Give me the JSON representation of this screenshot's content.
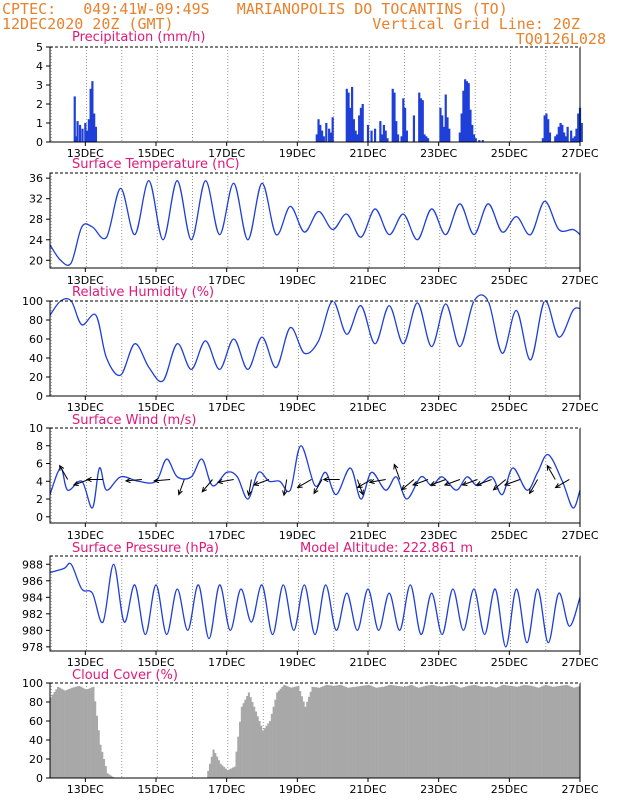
{
  "header": {
    "line1_left": "CPTEC:   049:41W-09:49S   MARIANOPOLIS DO TOCANTINS (TO)",
    "line2_left": "12DEC2020 20Z (GMT)",
    "line2_right": "Vertical Grid Line: 20Z",
    "line3_right": "TQ0126L028"
  },
  "colors": {
    "header": "#e8822c",
    "title": "#e0187a",
    "series": "#1f3fd8",
    "cloud": "#a8a8a8",
    "frame": "#000000"
  },
  "x_tick_labels": [
    "13DEC",
    "15DEC",
    "17DEC",
    "19DEC",
    "21DEC",
    "23DEC",
    "25DEC",
    "27DEC"
  ],
  "chart_data": [
    {
      "type": "bar",
      "title": "Precipitation (mm/h)",
      "x_unit": "days since 12DEC2020 00Z",
      "ylim": [
        0,
        5
      ],
      "yticks": [
        0,
        1,
        2,
        3,
        4,
        5
      ],
      "x": [
        0.7,
        0.74,
        0.78,
        0.85,
        0.92,
        1.0,
        1.05,
        1.1,
        1.15,
        1.2,
        1.25,
        1.3,
        7.55,
        7.6,
        7.65,
        7.7,
        7.75,
        7.82,
        7.9,
        7.95,
        8.0,
        8.4,
        8.45,
        8.5,
        8.55,
        8.6,
        8.65,
        8.7,
        8.75,
        8.8,
        8.85,
        9.0,
        9.1,
        9.2,
        9.35,
        9.4,
        9.45,
        9.5,
        9.55,
        9.7,
        9.75,
        9.8,
        9.85,
        9.95,
        10.0,
        10.05,
        10.1,
        10.3,
        10.45,
        10.5,
        10.55,
        10.6,
        10.65,
        10.7,
        11.05,
        11.1,
        11.15,
        11.2,
        11.25,
        11.3,
        11.6,
        11.65,
        11.7,
        11.75,
        11.8,
        11.85,
        11.9,
        11.95,
        12.0,
        12.05,
        12.15,
        12.25,
        13.95,
        14.0,
        14.05,
        14.1,
        14.15,
        14.3,
        14.35,
        14.4,
        14.45,
        14.5,
        14.55,
        14.6,
        14.65,
        14.75,
        14.8,
        14.85,
        14.9,
        14.95,
        15.0,
        15.05
      ],
      "values": [
        2.4,
        0.3,
        1.1,
        0.9,
        0.7,
        1.0,
        0.6,
        1.2,
        2.8,
        3.2,
        1.5,
        0.8,
        0.4,
        1.2,
        0.9,
        0.6,
        0.3,
        1.0,
        0.7,
        0.5,
        1.3,
        2.8,
        2.6,
        1.8,
        2.9,
        1.2,
        0.6,
        0.4,
        1.4,
        1.8,
        2.0,
        0.9,
        0.6,
        0.7,
        1.1,
        0.4,
        0.9,
        0.6,
        0.2,
        2.8,
        2.6,
        1.1,
        0.4,
        0.3,
        2.3,
        1.8,
        0.6,
        1.4,
        2.6,
        2.3,
        2.2,
        0.4,
        0.3,
        0.2,
        1.8,
        1.4,
        0.8,
        2.5,
        1.3,
        0.7,
        0.5,
        1.5,
        2.7,
        3.3,
        3.2,
        3.1,
        1.7,
        0.9,
        0.4,
        0.2,
        0.1,
        0.1,
        0.2,
        1.4,
        1.5,
        1.2,
        0.5,
        0.3,
        0.4,
        0.8,
        1.0,
        0.9,
        0.5,
        0.3,
        0.8,
        0.6,
        0.2,
        0.3,
        0.7,
        1.5,
        1.8,
        1.0
      ]
    },
    {
      "type": "line",
      "title": "Surface Temperature (nC)",
      "x_unit": "days since 12DEC2020 00Z",
      "ylim": [
        18.5,
        37
      ],
      "yticks": [
        20,
        24,
        28,
        32,
        36
      ],
      "x": [
        0.0,
        0.3,
        0.6,
        0.9,
        1.2,
        1.6,
        2.0,
        2.4,
        2.8,
        3.2,
        3.6,
        4.0,
        4.4,
        4.8,
        5.2,
        5.6,
        6.0,
        6.4,
        6.8,
        7.2,
        7.6,
        8.0,
        8.4,
        8.8,
        9.2,
        9.6,
        10.0,
        10.4,
        10.8,
        11.2,
        11.6,
        12.0,
        12.4,
        12.8,
        13.2,
        13.6,
        14.0,
        14.4,
        14.8,
        15.0
      ],
      "values": [
        23,
        20,
        19.5,
        26.5,
        26.5,
        24.5,
        34,
        25,
        35.5,
        24,
        35.5,
        24,
        35.5,
        25,
        35,
        24,
        35,
        25,
        30.5,
        25.5,
        29.5,
        26,
        29,
        24.5,
        30,
        25,
        29,
        24,
        30,
        25,
        31,
        25,
        31,
        25.5,
        28.5,
        25,
        31.5,
        26,
        26,
        25
      ]
    },
    {
      "type": "line",
      "title": "Relative Humidity (%)",
      "x_unit": "days since 12DEC2020 00Z",
      "ylim": [
        0,
        100
      ],
      "yticks": [
        0,
        20,
        40,
        60,
        80,
        100
      ],
      "x": [
        0.0,
        0.3,
        0.6,
        0.9,
        1.3,
        1.6,
        2.0,
        2.4,
        2.8,
        3.2,
        3.6,
        4.0,
        4.4,
        4.8,
        5.2,
        5.6,
        6.0,
        6.4,
        6.8,
        7.2,
        7.6,
        8.0,
        8.4,
        8.8,
        9.2,
        9.6,
        10.0,
        10.4,
        10.8,
        11.2,
        11.6,
        12.0,
        12.4,
        12.8,
        13.2,
        13.6,
        14.0,
        14.4,
        14.8,
        15.0
      ],
      "values": [
        85,
        100,
        100,
        75,
        85,
        40,
        22,
        55,
        30,
        16,
        55,
        28,
        58,
        28,
        60,
        28,
        62,
        30,
        72,
        45,
        58,
        100,
        65,
        95,
        55,
        95,
        55,
        98,
        52,
        97,
        52,
        100,
        100,
        45,
        90,
        38,
        100,
        62,
        90,
        92
      ]
    },
    {
      "type": "line",
      "title": "Surface Wind (m/s)",
      "x_unit": "days since 12DEC2020 00Z",
      "ylim": [
        -0.7,
        10
      ],
      "yticks": [
        0,
        2,
        4,
        6,
        8,
        10
      ],
      "x": [
        0.0,
        0.3,
        0.5,
        0.9,
        1.2,
        1.4,
        1.6,
        2.0,
        2.5,
        3.0,
        3.3,
        3.6,
        4.0,
        4.3,
        4.6,
        5.0,
        5.3,
        5.6,
        5.9,
        6.2,
        6.5,
        6.8,
        7.1,
        7.5,
        7.8,
        8.1,
        8.5,
        8.8,
        9.1,
        9.5,
        9.8,
        10.1,
        10.5,
        10.8,
        11.1,
        11.5,
        11.8,
        12.1,
        12.5,
        12.8,
        13.1,
        13.5,
        13.8,
        14.1,
        14.5,
        14.8,
        15.0
      ],
      "values": [
        2.5,
        5.5,
        3,
        4,
        1,
        5.5,
        3,
        4.5,
        4,
        4,
        6.5,
        4.5,
        4.5,
        6.5,
        3.5,
        5,
        4.5,
        2,
        5,
        4,
        4,
        3,
        8,
        3.5,
        5,
        2.5,
        5.5,
        2,
        5,
        3,
        4.5,
        2,
        4.5,
        3.5,
        4.5,
        3,
        4.5,
        3.5,
        4.5,
        2.5,
        5.5,
        3,
        5,
        7,
        4,
        1,
        3
      ],
      "arrow_x": [
        0.5,
        1.1,
        1.5,
        2.6,
        3.4,
        3.8,
        4.6,
        5.2,
        5.7,
        6.2,
        6.7,
        7.4,
        7.7,
        8.2,
        8.7,
        9.1,
        9.5,
        9.9,
        10.3,
        10.7,
        11.2,
        11.6,
        12.1,
        12.5,
        12.9,
        13.3,
        13.8,
        14.3,
        14.7
      ],
      "arrow_angle_deg": [
        120,
        200,
        180,
        185,
        185,
        250,
        230,
        190,
        260,
        200,
        260,
        210,
        240,
        180,
        290,
        210,
        190,
        110,
        220,
        200,
        200,
        200,
        200,
        200,
        220,
        200,
        240,
        120,
        210
      ]
    },
    {
      "type": "line",
      "title": "Surface Pressure (hPa)",
      "subtitle": "Model Altitude: 222.861 m",
      "x_unit": "days since 12DEC2020 00Z",
      "ylim": [
        977.5,
        989
      ],
      "yticks": [
        978,
        980,
        982,
        984,
        986,
        988
      ],
      "x": [
        0.0,
        0.4,
        0.6,
        0.9,
        1.2,
        1.5,
        1.8,
        2.1,
        2.4,
        2.7,
        3.0,
        3.3,
        3.6,
        3.9,
        4.2,
        4.5,
        4.8,
        5.1,
        5.4,
        5.7,
        6.0,
        6.3,
        6.6,
        6.9,
        7.2,
        7.5,
        7.8,
        8.1,
        8.4,
        8.7,
        9.0,
        9.3,
        9.6,
        9.9,
        10.2,
        10.5,
        10.8,
        11.1,
        11.4,
        11.7,
        12.0,
        12.3,
        12.6,
        12.9,
        13.2,
        13.5,
        13.8,
        14.1,
        14.4,
        14.7,
        15.0
      ],
      "values": [
        987,
        987.5,
        988,
        985,
        984.5,
        981,
        988,
        981,
        985.5,
        979.5,
        985.5,
        979.5,
        985,
        980,
        985.5,
        979,
        985.5,
        980,
        985,
        981,
        985.5,
        979.5,
        985.5,
        980,
        985.5,
        979.5,
        985.5,
        980,
        984.5,
        980,
        985,
        980,
        984.5,
        980,
        985.5,
        979.5,
        984.5,
        979.5,
        985,
        980,
        985,
        979.5,
        985,
        978,
        985,
        978.5,
        985,
        978.5,
        984.5,
        980.5,
        984
      ]
    },
    {
      "type": "bar",
      "title": "Cloud Cover (%)",
      "x_unit": "days since 12DEC2020 00Z",
      "ylim": [
        0,
        100
      ],
      "yticks": [
        0,
        20,
        40,
        60,
        80,
        100
      ],
      "x": [
        0.0,
        0.2,
        0.4,
        0.6,
        0.8,
        1.0,
        1.2,
        1.4,
        1.6,
        1.8,
        2.0,
        2.2,
        2.4,
        2.6,
        2.8,
        3.0,
        3.2,
        3.4,
        3.6,
        3.8,
        4.0,
        4.2,
        4.4,
        4.6,
        4.8,
        5.0,
        5.2,
        5.4,
        5.6,
        5.8,
        6.0,
        6.2,
        6.4,
        6.6,
        6.8,
        7.0,
        7.2,
        7.4,
        7.6,
        7.8,
        8.0,
        8.2,
        8.4,
        8.6,
        8.8,
        9.0,
        9.2,
        9.4,
        9.6,
        9.8,
        10.0,
        10.2,
        10.4,
        10.6,
        10.8,
        11.0,
        11.2,
        11.4,
        11.6,
        11.8,
        12.0,
        12.2,
        12.4,
        12.6,
        12.8,
        13.0,
        13.2,
        13.4,
        13.6,
        13.8,
        14.0,
        14.2,
        14.4,
        14.6,
        14.8,
        15.0
      ],
      "values": [
        85,
        96,
        92,
        95,
        97,
        93,
        96,
        35,
        5,
        0,
        0,
        0,
        0,
        0,
        0,
        0,
        0,
        0,
        0,
        0,
        0,
        0,
        0,
        30,
        15,
        8,
        12,
        75,
        90,
        70,
        50,
        60,
        90,
        98,
        95,
        97,
        75,
        96,
        95,
        98,
        97,
        98,
        95,
        96,
        97,
        98,
        95,
        96,
        98,
        97,
        96,
        98,
        95,
        97,
        98,
        96,
        97,
        98,
        95,
        97,
        98,
        96,
        97,
        95,
        98,
        97,
        96,
        98,
        97,
        95,
        98,
        96,
        97,
        98,
        95,
        97
      ]
    }
  ]
}
